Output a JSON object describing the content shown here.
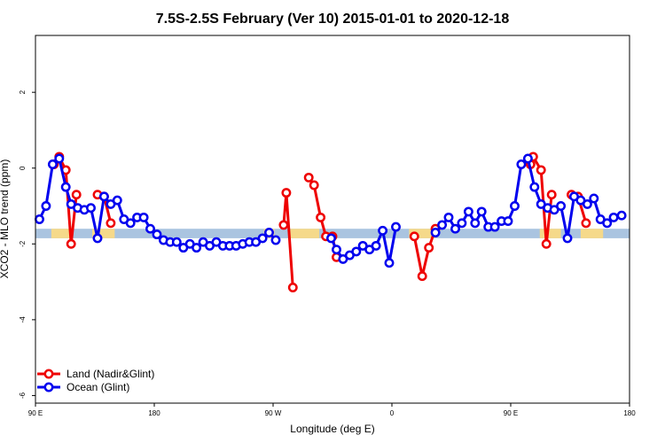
{
  "chart_data": {
    "type": "line",
    "title": "7.5S-2.5S February (Ver 10)   2015-01-01 to 2020-12-18",
    "xlabel": "Longitude (deg E)",
    "ylabel": "XCO2 - MLO trend (ppm)",
    "xlim": [
      90,
      540
    ],
    "ylim": [
      -6.2,
      3.5
    ],
    "x_ticks": [
      {
        "value": 90,
        "label": "90 E"
      },
      {
        "value": 180,
        "label": "180"
      },
      {
        "value": 270,
        "label": "90 W"
      },
      {
        "value": 360,
        "label": "0"
      },
      {
        "value": 450,
        "label": "90 E"
      },
      {
        "value": 540,
        "label": "180"
      }
    ],
    "y_ticks": [
      {
        "value": 2,
        "label": "2"
      },
      {
        "value": 0,
        "label": "0"
      },
      {
        "value": -2,
        "label": "-2"
      },
      {
        "value": -4,
        "label": "-4"
      },
      {
        "value": -6,
        "label": "-6"
      }
    ],
    "legend_position": "bottom-left",
    "band": {
      "y_top": -1.6,
      "y_bottom": -1.85,
      "ocean_color": "#aac4e0",
      "land_color": "#f5d98a",
      "land_ranges": [
        [
          102,
          118
        ],
        [
          133,
          150
        ],
        [
          263,
          271
        ],
        [
          283,
          305
        ],
        [
          373,
          393
        ],
        [
          472,
          488
        ],
        [
          503,
          520
        ]
      ]
    },
    "series": [
      {
        "name": "Land (Nadir&Glint)",
        "color": "#ee0000",
        "segments": [
          [
            [
              104,
              0.1
            ],
            [
              108,
              0.3
            ],
            [
              113,
              -0.05
            ],
            [
              117,
              -2.0
            ],
            [
              121,
              -0.7
            ]
          ],
          [
            [
              137,
              -0.7
            ],
            [
              142,
              -0.75
            ],
            [
              147,
              -1.45
            ]
          ],
          [
            [
              278,
              -1.5
            ],
            [
              280,
              -0.65
            ],
            [
              285,
              -3.15
            ]
          ],
          [
            [
              297,
              -0.25
            ],
            [
              301,
              -0.45
            ],
            [
              306,
              -1.3
            ],
            [
              310,
              -1.8
            ],
            [
              315,
              -1.8
            ],
            [
              318,
              -2.35
            ]
          ],
          [
            [
              377,
              -1.8
            ],
            [
              383,
              -2.85
            ],
            [
              388,
              -2.1
            ],
            [
              393,
              -1.6
            ]
          ],
          [
            [
              465,
              0.1
            ],
            [
              467,
              0.3
            ],
            [
              473,
              -0.05
            ],
            [
              477,
              -2.0
            ],
            [
              481,
              -0.7
            ]
          ],
          [
            [
              496,
              -0.7
            ],
            [
              501,
              -0.75
            ],
            [
              507,
              -1.45
            ]
          ]
        ]
      },
      {
        "name": "Ocean (Glint)",
        "color": "#0000ee",
        "segments": [
          [
            [
              93,
              -1.35
            ],
            [
              98,
              -1.0
            ],
            [
              103,
              0.1
            ],
            [
              108,
              0.25
            ],
            [
              113,
              -0.5
            ],
            [
              117,
              -0.95
            ],
            [
              122,
              -1.05
            ],
            [
              127,
              -1.1
            ],
            [
              132,
              -1.05
            ],
            [
              137,
              -1.85
            ],
            [
              142,
              -0.75
            ],
            [
              147,
              -0.95
            ],
            [
              152,
              -0.85
            ],
            [
              157,
              -1.35
            ],
            [
              162,
              -1.45
            ],
            [
              167,
              -1.3
            ],
            [
              172,
              -1.3
            ],
            [
              177,
              -1.6
            ],
            [
              182,
              -1.75
            ],
            [
              187,
              -1.9
            ],
            [
              192,
              -1.95
            ],
            [
              197,
              -1.95
            ],
            [
              202,
              -2.1
            ],
            [
              207,
              -2.0
            ],
            [
              212,
              -2.1
            ],
            [
              217,
              -1.95
            ],
            [
              222,
              -2.05
            ],
            [
              227,
              -1.95
            ],
            [
              232,
              -2.05
            ],
            [
              237,
              -2.05
            ],
            [
              242,
              -2.05
            ],
            [
              247,
              -2.0
            ],
            [
              252,
              -1.95
            ],
            [
              257,
              -1.95
            ],
            [
              262,
              -1.85
            ],
            [
              267,
              -1.7
            ],
            [
              272,
              -1.9
            ]
          ],
          [
            [
              314,
              -1.85
            ],
            [
              318,
              -2.15
            ],
            [
              323,
              -2.4
            ],
            [
              328,
              -2.3
            ],
            [
              333,
              -2.2
            ],
            [
              338,
              -2.05
            ],
            [
              343,
              -2.15
            ],
            [
              348,
              -2.05
            ],
            [
              353,
              -1.65
            ],
            [
              358,
              -2.5
            ],
            [
              363,
              -1.55
            ]
          ],
          [
            [
              393,
              -1.7
            ],
            [
              398,
              -1.5
            ],
            [
              403,
              -1.3
            ],
            [
              408,
              -1.6
            ],
            [
              413,
              -1.45
            ],
            [
              418,
              -1.15
            ],
            [
              423,
              -1.45
            ],
            [
              428,
              -1.15
            ],
            [
              433,
              -1.55
            ],
            [
              438,
              -1.55
            ],
            [
              443,
              -1.4
            ],
            [
              448,
              -1.4
            ],
            [
              453,
              -1.0
            ],
            [
              458,
              0.1
            ],
            [
              463,
              0.25
            ],
            [
              468,
              -0.5
            ],
            [
              473,
              -0.95
            ],
            [
              478,
              -1.05
            ],
            [
              483,
              -1.1
            ],
            [
              488,
              -1.0
            ],
            [
              493,
              -1.85
            ],
            [
              498,
              -0.75
            ],
            [
              503,
              -0.85
            ],
            [
              508,
              -0.95
            ],
            [
              513,
              -0.8
            ],
            [
              518,
              -1.35
            ],
            [
              523,
              -1.45
            ],
            [
              528,
              -1.3
            ],
            [
              534,
              -1.25
            ]
          ]
        ]
      }
    ]
  }
}
